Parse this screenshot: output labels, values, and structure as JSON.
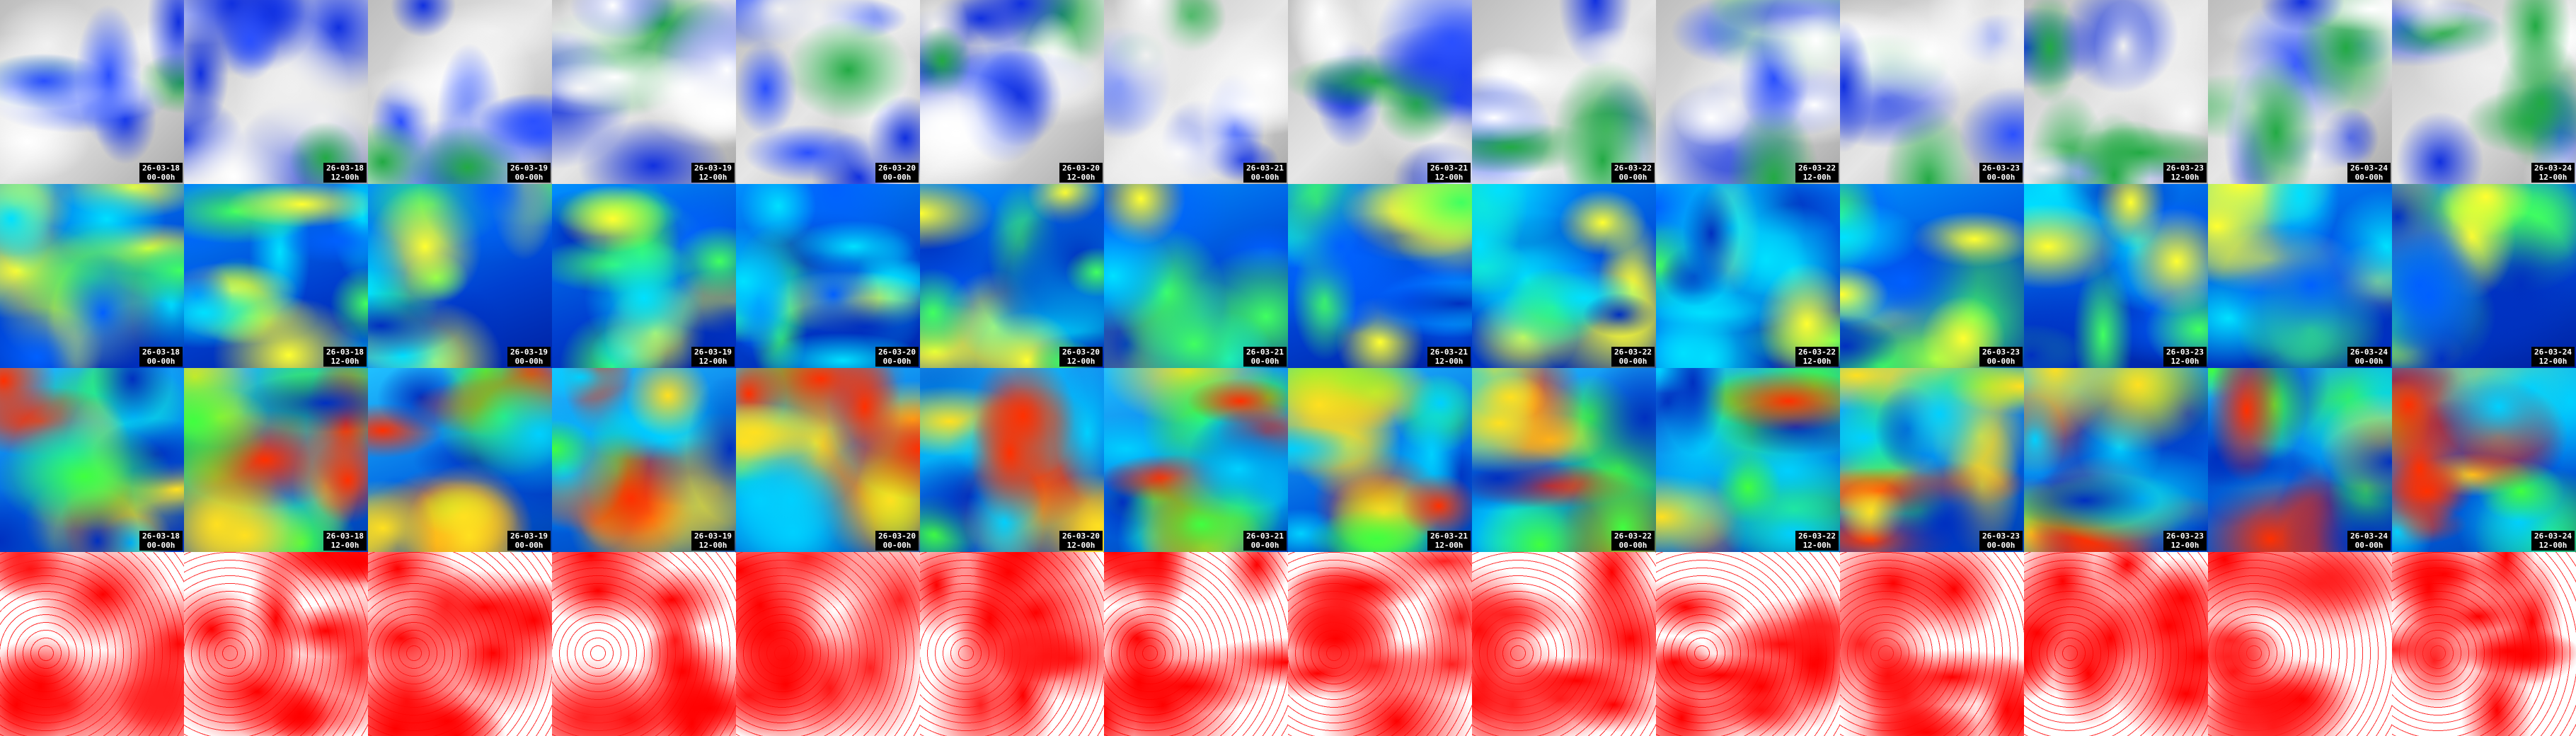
{
  "columns": [
    {
      "date": "26-03-18",
      "time": "00-00h"
    },
    {
      "date": "26-03-18",
      "time": "12-00h"
    },
    {
      "date": "26-03-19",
      "time": "00-00h"
    },
    {
      "date": "26-03-19",
      "time": "12-00h"
    },
    {
      "date": "26-03-20",
      "time": "00-00h"
    },
    {
      "date": "26-03-20",
      "time": "12-00h"
    },
    {
      "date": "26-03-21",
      "time": "00-00h"
    },
    {
      "date": "26-03-21",
      "time": "12-00h"
    },
    {
      "date": "26-03-22",
      "time": "00-00h"
    },
    {
      "date": "26-03-22",
      "time": "12-00h"
    },
    {
      "date": "26-03-23",
      "time": "00-00h"
    },
    {
      "date": "26-03-23",
      "time": "12-00h"
    },
    {
      "date": "26-03-24",
      "time": "00-00h"
    },
    {
      "date": "26-03-24",
      "time": "12-00h"
    }
  ]
}
